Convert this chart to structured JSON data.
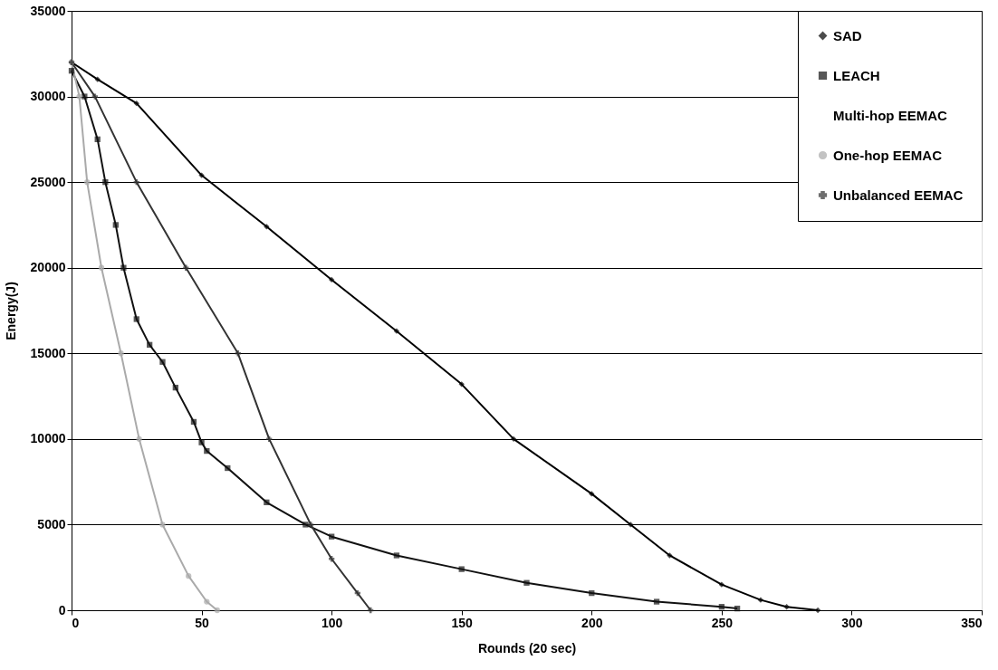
{
  "chart_data": {
    "type": "line",
    "xlabel": "Rounds (20 sec)",
    "ylabel": "Energy(J)",
    "xlim": [
      0,
      350
    ],
    "ylim": [
      0,
      35000
    ],
    "xticks": [
      0,
      50,
      100,
      150,
      200,
      250,
      300,
      350
    ],
    "yticks": [
      0,
      5000,
      10000,
      15000,
      20000,
      25000,
      30000,
      35000
    ],
    "grid": "y",
    "legend": "top right",
    "line_style": "solid",
    "series": [
      {
        "name": "SAD",
        "color": "#000000",
        "marker": "diamond",
        "x": [
          0,
          10,
          25,
          50,
          75,
          100,
          125,
          150,
          170,
          200,
          215,
          230,
          250,
          265,
          275,
          287
        ],
        "values": [
          32000,
          31000,
          29600,
          25400,
          22400,
          19300,
          16300,
          13200,
          10000,
          6800,
          5000,
          3200,
          1500,
          600,
          200,
          0
        ]
      },
      {
        "name": "LEACH",
        "color": "#111111",
        "marker": "square",
        "x": [
          0,
          5,
          10,
          13,
          17,
          20,
          25,
          30,
          35,
          40,
          47,
          50,
          52,
          60,
          75,
          90,
          100,
          125,
          150,
          175,
          200,
          225,
          250,
          256
        ],
        "values": [
          31500,
          30000,
          27500,
          25000,
          22500,
          20000,
          17000,
          15500,
          14500,
          13000,
          11000,
          9800,
          9300,
          8300,
          6300,
          5000,
          4300,
          3200,
          2400,
          1600,
          1000,
          500,
          200,
          100
        ]
      },
      {
        "name": "Multi-hop EEMAC",
        "marker": "none"
      },
      {
        "name": "One-hop EEMAC",
        "color": "#aaaaaa",
        "marker": "circle",
        "x": [
          0,
          3,
          6,
          11.5,
          19,
          26,
          35,
          45,
          52,
          56
        ],
        "values": [
          32000,
          30000,
          25000,
          20000,
          15000,
          10000,
          5000,
          2000,
          500,
          0
        ]
      },
      {
        "name": "Unbalanced EEMAC",
        "color": "#333333",
        "marker": "cross",
        "x": [
          0,
          9,
          25,
          44,
          64,
          76,
          92,
          100,
          110,
          115
        ],
        "values": [
          32000,
          30000,
          25000,
          20000,
          15000,
          10000,
          5000,
          3000,
          1000,
          0
        ]
      }
    ]
  }
}
